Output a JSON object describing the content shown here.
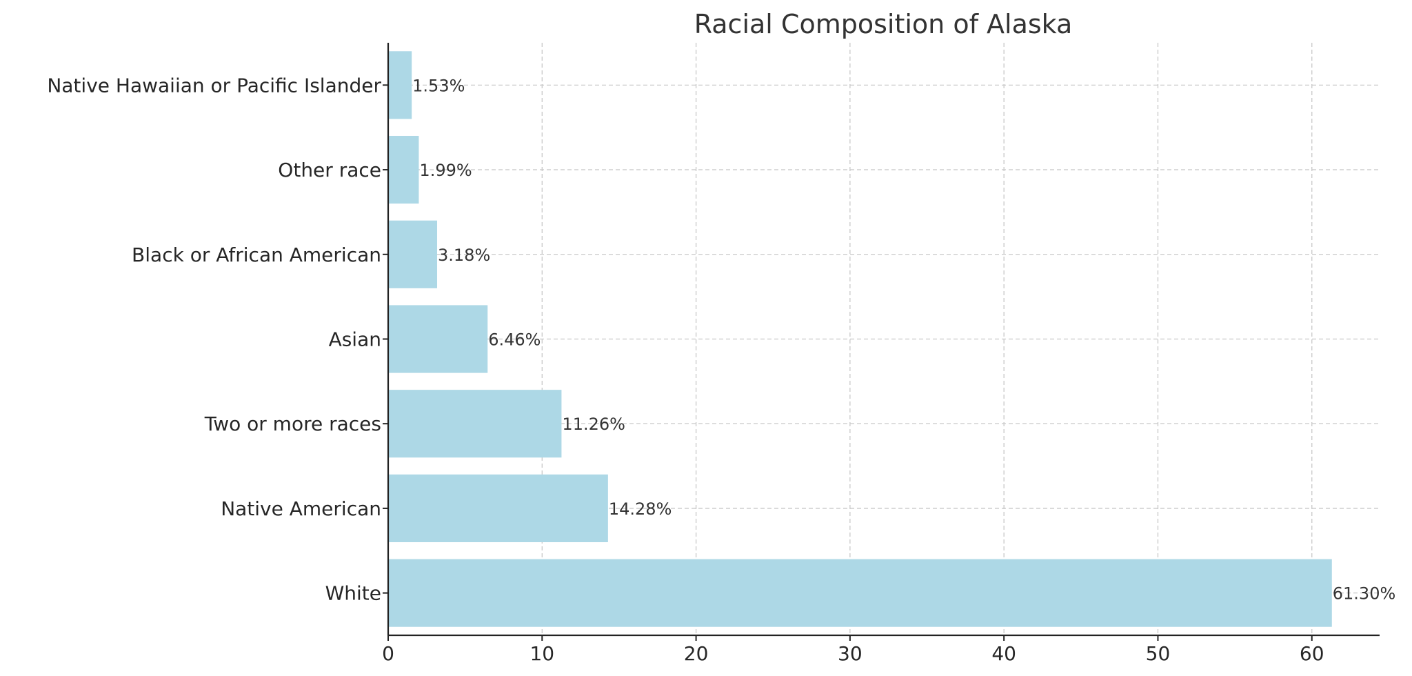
{
  "chart_data": {
    "type": "bar",
    "orientation": "horizontal",
    "title": "Racial Composition of Alaska",
    "xlabel": "",
    "ylabel": "",
    "categories": [
      "White",
      "Native American",
      "Two or more races",
      "Asian",
      "Black or African American",
      "Other race",
      "Native Hawaiian or Pacific Islander"
    ],
    "values": [
      61.3,
      14.28,
      11.26,
      6.46,
      3.18,
      1.99,
      1.53
    ],
    "data_labels": [
      "61.30%",
      "14.28%",
      "11.26%",
      "6.46%",
      "3.18%",
      "1.99%",
      "1.53%"
    ],
    "xlim": [
      0,
      64.4
    ],
    "xticks": [
      0,
      10,
      20,
      30,
      40,
      50,
      60
    ],
    "grid": true,
    "bar_color": "#add8e6"
  }
}
